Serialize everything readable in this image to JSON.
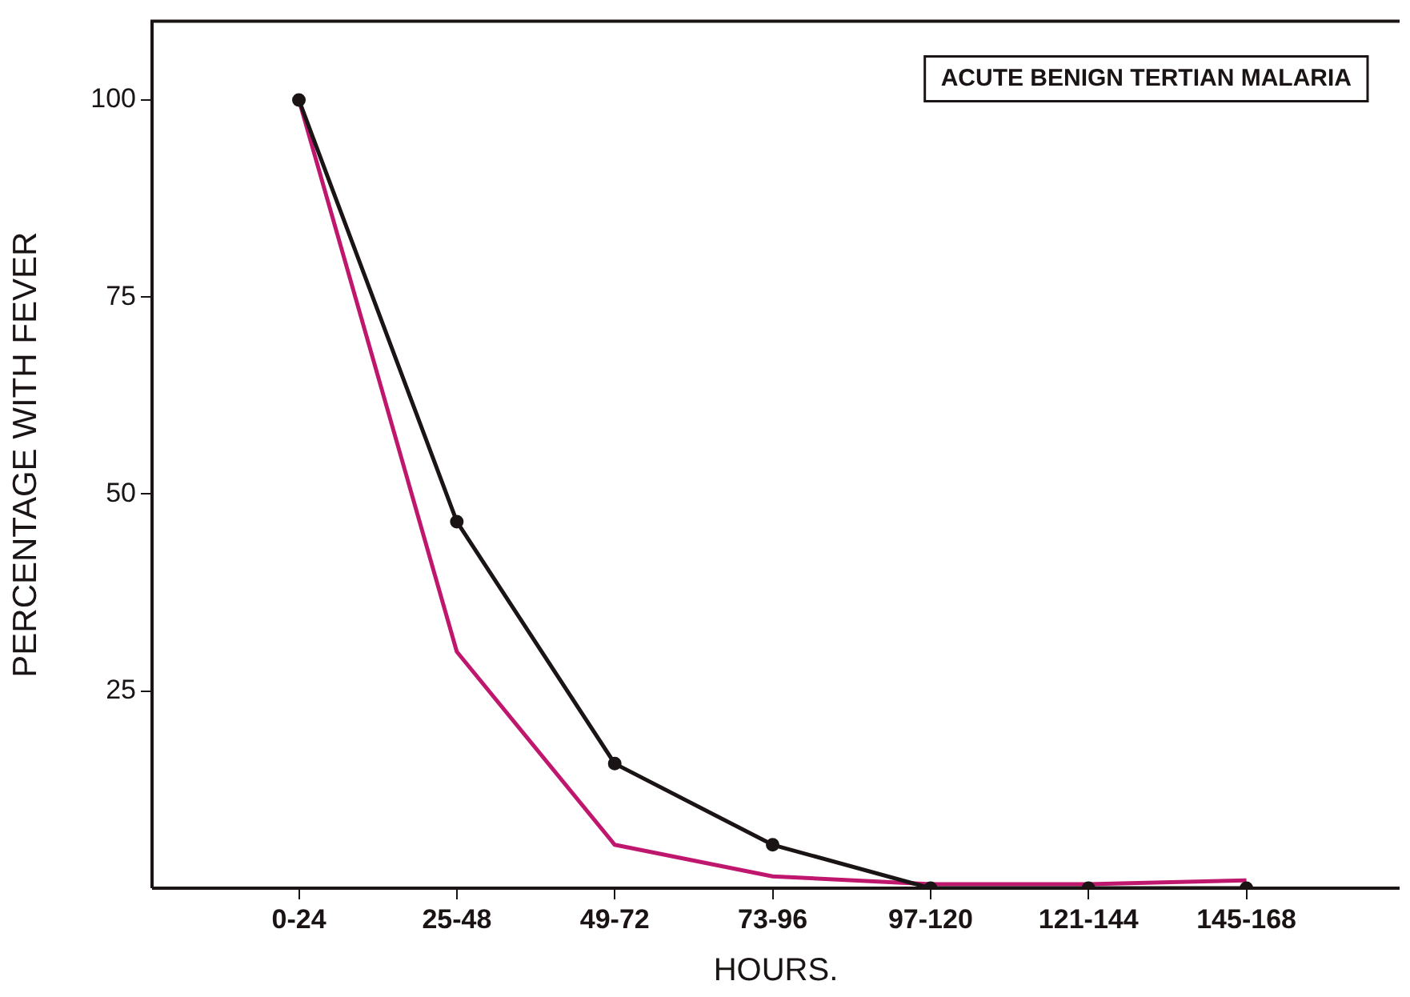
{
  "chart_data": {
    "type": "line",
    "xlabel": "HOURS.",
    "ylabel": "PERCENTAGE WITH FEVER",
    "categories": [
      "0-24",
      "25-48",
      "49-72",
      "73-96",
      "97-120",
      "121-144",
      "145-168"
    ],
    "series": [
      {
        "color": "#1a1414",
        "marker": "circle",
        "values": [
          100,
          46.5,
          15.8,
          5.5,
          0,
          0,
          0
        ]
      },
      {
        "color": "#c0176e",
        "marker": "none",
        "values": [
          100,
          30,
          5.5,
          1.5,
          0.5,
          0.5,
          1
        ]
      }
    ],
    "ylim": [
      0,
      110
    ],
    "yticks": [
      25,
      50,
      75,
      100
    ],
    "grid": false,
    "legend": false,
    "annotations": [
      "ACUTE BENIGN TERTIAN MALARIA"
    ]
  }
}
